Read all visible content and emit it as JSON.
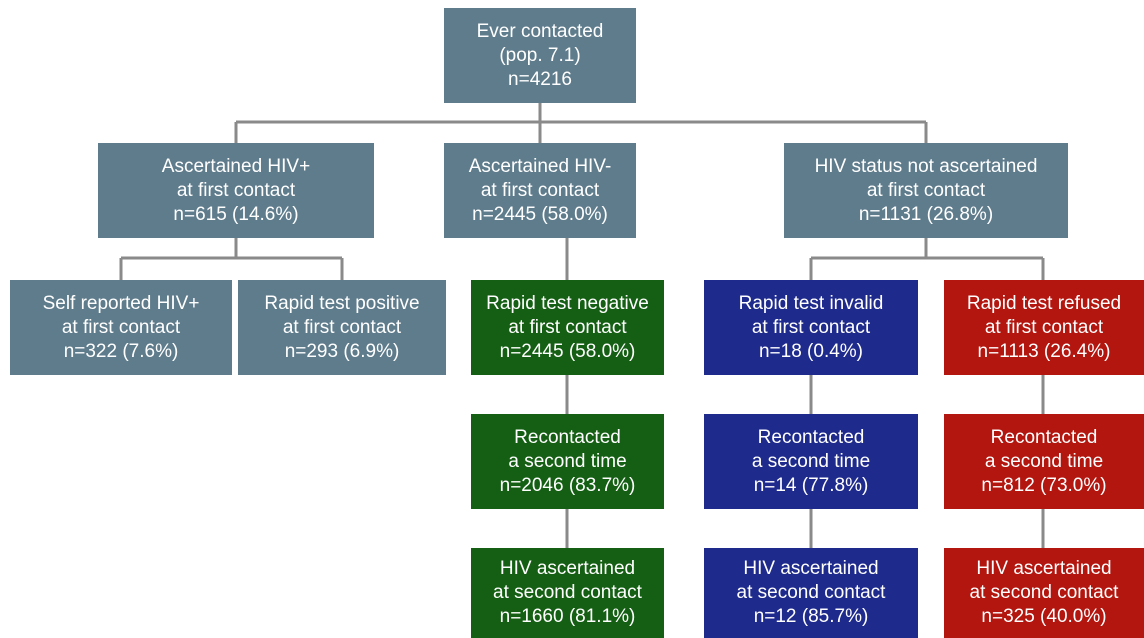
{
  "nodes": [
    {
      "lines": [
        "Ever contacted",
        "(pop. 7.1)",
        "n=4216"
      ]
    },
    {
      "lines": [
        "Ascertained HIV+",
        "at first contact",
        "n=615 (14.6%)"
      ]
    },
    {
      "lines": [
        "Ascertained HIV-",
        "at first contact",
        "n=2445 (58.0%)"
      ]
    },
    {
      "lines": [
        "HIV status not ascertained",
        "at first contact",
        "n=1131 (26.8%)"
      ]
    },
    {
      "lines": [
        "Self reported HIV+",
        "at first contact",
        "n=322 (7.6%)"
      ]
    },
    {
      "lines": [
        "Rapid test positive",
        "at first contact",
        "n=293 (6.9%)"
      ]
    },
    {
      "lines": [
        "Rapid test negative",
        "at first contact",
        "n=2445 (58.0%)"
      ]
    },
    {
      "lines": [
        "Rapid test invalid",
        "at first contact",
        "n=18 (0.4%)"
      ]
    },
    {
      "lines": [
        "Rapid test refused",
        "at first contact",
        "n=1113 (26.4%)"
      ]
    },
    {
      "lines": [
        "Recontacted",
        "a second time",
        "n=2046 (83.7%)"
      ]
    },
    {
      "lines": [
        "Recontacted",
        "a second time",
        "n=14 (77.8%)"
      ]
    },
    {
      "lines": [
        "Recontacted",
        "a second time",
        "n=812 (73.0%)"
      ]
    },
    {
      "lines": [
        "HIV ascertained",
        "at second contact",
        "n=1660 (81.1%)"
      ]
    },
    {
      "lines": [
        "HIV ascertained",
        "at second contact",
        "n=12 (85.7%)"
      ]
    },
    {
      "lines": [
        "HIV ascertained",
        "at second contact",
        "n=325 (40.0%)"
      ]
    }
  ]
}
